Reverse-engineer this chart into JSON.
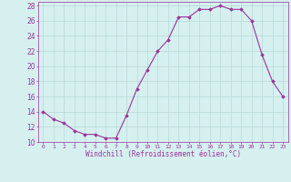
{
  "x": [
    0,
    1,
    2,
    3,
    4,
    5,
    6,
    7,
    8,
    9,
    10,
    11,
    12,
    13,
    14,
    15,
    16,
    17,
    18,
    19,
    20,
    21,
    22,
    23
  ],
  "y": [
    14,
    13,
    12.5,
    11.5,
    11,
    11,
    10.5,
    10.5,
    13.5,
    17,
    19.5,
    22,
    23.5,
    26.5,
    26.5,
    27.5,
    27.5,
    28,
    27.5,
    27.5,
    26,
    21.5,
    18,
    16
  ],
  "line_color": "#993399",
  "marker": "D",
  "marker_size": 1.8,
  "background_color": "#d6f0f0",
  "grid_color": "#b8d8d8",
  "xlabel": "Windchill (Refroidissement éolien,°C)",
  "xlim": [
    -0.5,
    23.5
  ],
  "ylim": [
    10,
    28.5
  ],
  "yticks": [
    10,
    12,
    14,
    16,
    18,
    20,
    22,
    24,
    26,
    28
  ],
  "xticks": [
    0,
    1,
    2,
    3,
    4,
    5,
    6,
    7,
    8,
    9,
    10,
    11,
    12,
    13,
    14,
    15,
    16,
    17,
    18,
    19,
    20,
    21,
    22,
    23
  ],
  "tick_color": "#993399",
  "label_color": "#993399",
  "spine_color": "#993399",
  "xlabel_fontsize": 5.5,
  "ytick_fontsize": 5.5,
  "xtick_fontsize": 4.5
}
